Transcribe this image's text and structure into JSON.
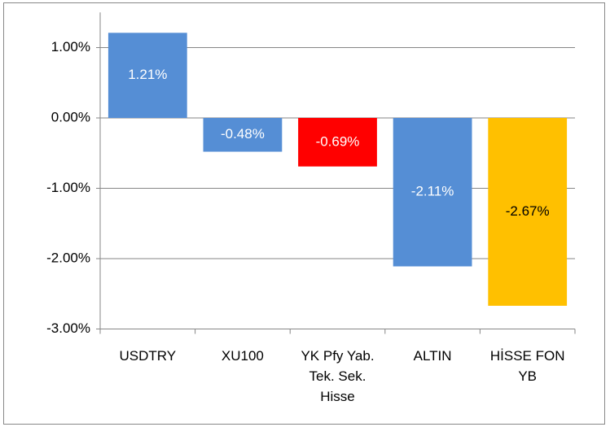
{
  "chart_data": {
    "type": "bar",
    "categories": [
      "USDTRY",
      "XU100",
      "YK Pfy Yab. Tek. Sek. Hisse",
      "ALTIN",
      "HİSSE FON YB"
    ],
    "values": [
      1.21,
      -0.48,
      -0.69,
      -2.11,
      -2.67
    ],
    "value_labels": [
      "1.21%",
      "-0.48%",
      "-0.69%",
      "-2.11%",
      "-2.67%"
    ],
    "colors": [
      "#558ed5",
      "#558ed5",
      "#ff0000",
      "#558ed5",
      "#ffc000"
    ],
    "value_label_colors": [
      "#ffffff",
      "#ffffff",
      "#ffffff",
      "#ffffff",
      "#000000"
    ],
    "ylim": [
      -3,
      1.5
    ],
    "yticks": [
      {
        "value": 1,
        "label": "1.00%"
      },
      {
        "value": 0,
        "label": "0.00%"
      },
      {
        "value": -1,
        "label": "-1.00%"
      },
      {
        "value": -2,
        "label": "-2.00%"
      },
      {
        "value": -3,
        "label": "-3.00%"
      }
    ],
    "grid": true
  }
}
